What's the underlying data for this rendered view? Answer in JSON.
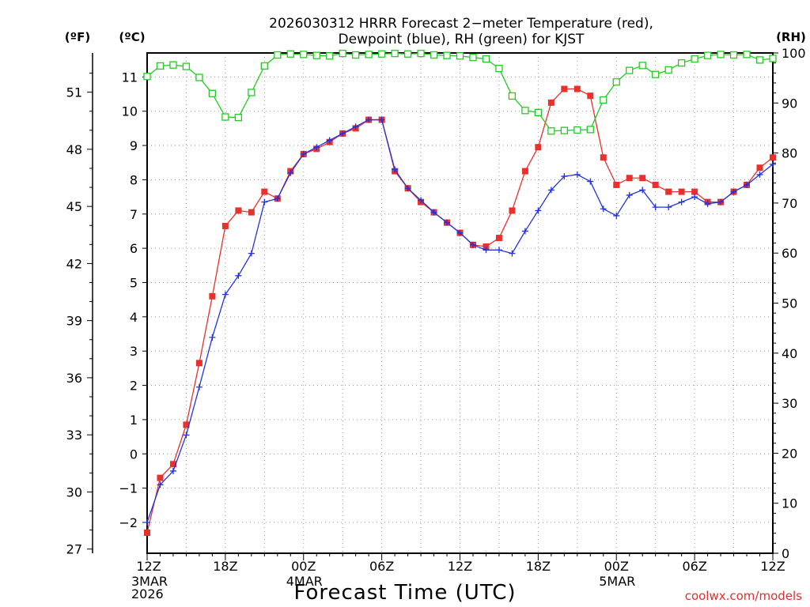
{
  "chart_data": {
    "type": "line",
    "title_lines": [
      "2026030312 HRRR Forecast 2−meter Temperature (red),",
      "Dewpoint (blue), RH (green) for KJST"
    ],
    "xlabel": "Forecast Time (UTC)",
    "credit": "coolwx.com/models",
    "units": {
      "fahrenheit": "(ºF)",
      "celsius": "(ºC)",
      "rh": "(RH)"
    },
    "x_range_hours": [
      0,
      48
    ],
    "c_range": [
      -2.9,
      11.7
    ],
    "rh_range": [
      0,
      100
    ],
    "grid": true,
    "x_ticks": [
      {
        "hour": 0,
        "label": "12Z",
        "date": [
          "3MAR",
          "2026"
        ]
      },
      {
        "hour": 6,
        "label": "18Z",
        "date": []
      },
      {
        "hour": 12,
        "label": "00Z",
        "date": [
          "4MAR"
        ]
      },
      {
        "hour": 18,
        "label": "06Z",
        "date": []
      },
      {
        "hour": 24,
        "label": "12Z",
        "date": []
      },
      {
        "hour": 30,
        "label": "18Z",
        "date": []
      },
      {
        "hour": 36,
        "label": "00Z",
        "date": [
          "5MAR"
        ]
      },
      {
        "hour": 42,
        "label": "06Z",
        "date": []
      },
      {
        "hour": 48,
        "label": "12Z",
        "date": []
      }
    ],
    "c_ticks": [
      -2,
      -1,
      0,
      1,
      2,
      3,
      4,
      5,
      6,
      7,
      8,
      9,
      10,
      11
    ],
    "c_tick_labels": [
      "−2",
      "−1",
      "0",
      "1",
      "2",
      "3",
      "4",
      "5",
      "6",
      "7",
      "8",
      "9",
      "10",
      "11"
    ],
    "f_ticks": [
      27,
      30,
      33,
      36,
      39,
      42,
      45,
      48,
      51
    ],
    "rh_ticks": [
      0,
      10,
      20,
      30,
      40,
      50,
      60,
      70,
      80,
      90,
      100
    ],
    "series": [
      {
        "name": "Temperature",
        "color": "#e8302c",
        "marker": "filled-square",
        "unit": "C",
        "values": [
          -2.3,
          -0.7,
          -0.3,
          0.85,
          2.65,
          4.6,
          6.65,
          7.1,
          7.05,
          7.65,
          7.45,
          8.25,
          8.75,
          8.9,
          9.1,
          9.35,
          9.5,
          9.75,
          9.75,
          8.25,
          7.75,
          7.35,
          7.05,
          6.75,
          6.45,
          6.1,
          6.05,
          6.3,
          7.1,
          8.25,
          8.95,
          10.25,
          10.65,
          10.65,
          10.45,
          8.65,
          7.85,
          8.05,
          8.05,
          7.85,
          7.65,
          7.65,
          7.65,
          7.35,
          7.35,
          7.65,
          7.85,
          8.35,
          8.65
        ]
      },
      {
        "name": "Dewpoint",
        "color": "#2233dd",
        "marker": "plus",
        "unit": "C",
        "values": [
          -2.0,
          -0.9,
          -0.5,
          0.55,
          1.95,
          3.4,
          4.65,
          5.2,
          5.85,
          7.35,
          7.45,
          8.2,
          8.75,
          8.95,
          9.15,
          9.35,
          9.55,
          9.75,
          9.75,
          8.3,
          7.75,
          7.4,
          7.05,
          6.75,
          6.45,
          6.1,
          5.95,
          5.95,
          5.85,
          6.5,
          7.1,
          7.7,
          8.1,
          8.15,
          7.95,
          7.15,
          6.95,
          7.55,
          7.7,
          7.2,
          7.2,
          7.35,
          7.5,
          7.3,
          7.35,
          7.65,
          7.85,
          8.15,
          8.45
        ]
      },
      {
        "name": "RH",
        "color": "#22cc22",
        "marker": "open-square",
        "unit": "RH",
        "values": [
          95.3,
          97.4,
          97.6,
          97.3,
          95.1,
          91.9,
          87.2,
          87.1,
          92.1,
          97.4,
          99.6,
          99.8,
          99.7,
          99.5,
          99.4,
          99.9,
          99.6,
          99.7,
          99.8,
          99.9,
          99.8,
          99.9,
          99.6,
          99.5,
          99.4,
          99.1,
          98.8,
          96.9,
          91.4,
          88.5,
          88.1,
          84.4,
          84.5,
          84.6,
          84.7,
          90.6,
          94.2,
          96.5,
          97.5,
          95.7,
          96.6,
          98.0,
          98.8,
          99.5,
          99.7,
          99.6,
          99.7,
          98.6,
          98.9
        ]
      }
    ]
  }
}
